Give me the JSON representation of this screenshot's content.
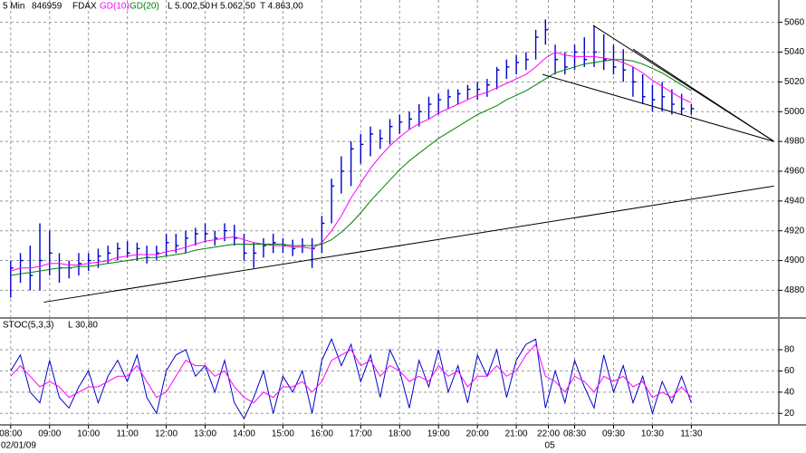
{
  "chart_data": [
    {
      "type": "ohlc",
      "title": "5 Min",
      "labels": [
        "846959",
        "FDAX",
        "L 5.002,50",
        "H 5.062,50",
        "T 4.863,00"
      ],
      "color": "#0000cc",
      "grid": true,
      "x": [
        0,
        1,
        2,
        3,
        4,
        5,
        6,
        7,
        8,
        9,
        10,
        11,
        12,
        13,
        14,
        15,
        16,
        17,
        18,
        19,
        20,
        21,
        22,
        23,
        24,
        25,
        26,
        27,
        28,
        29,
        30,
        31,
        32,
        33,
        34,
        35,
        36,
        37,
        38,
        39,
        40,
        41,
        42,
        43,
        44,
        45,
        46,
        47,
        48,
        49,
        50,
        51,
        52,
        53,
        54,
        55,
        56,
        57,
        58,
        59,
        60,
        61,
        62,
        63,
        64,
        65,
        66,
        67,
        68,
        69,
        70
      ],
      "high": [
        4900,
        4905,
        4910,
        4925,
        4920,
        4905,
        4900,
        4905,
        4905,
        4908,
        4910,
        4912,
        4913,
        4912,
        4910,
        4910,
        4918,
        4918,
        4920,
        4922,
        4925,
        4920,
        4925,
        4924,
        4918,
        4912,
        4915,
        4918,
        4915,
        4914,
        4915,
        4915,
        4930,
        4955,
        4970,
        4980,
        4985,
        4990,
        4988,
        4995,
        4998,
        5000,
        5005,
        5010,
        5012,
        5015,
        5015,
        5018,
        5020,
        5022,
        5030,
        5035,
        5038,
        5040,
        5055,
        5062,
        5045,
        5040,
        5045,
        5050,
        5058,
        5052,
        5045,
        5042,
        5030,
        5025,
        5018,
        5020,
        5015,
        5012,
        5005
      ],
      "low": [
        4875,
        4885,
        4880,
        4880,
        4890,
        4885,
        4888,
        4890,
        4893,
        4895,
        4898,
        4900,
        4902,
        4900,
        4898,
        4900,
        4903,
        4905,
        4905,
        4910,
        4912,
        4910,
        4913,
        4910,
        4900,
        4895,
        4902,
        4905,
        4905,
        4903,
        4905,
        4895,
        4905,
        4925,
        4945,
        4950,
        4965,
        4970,
        4975,
        4978,
        4985,
        4988,
        4990,
        4995,
        4998,
        5002,
        5005,
        5008,
        5008,
        5010,
        5015,
        5022,
        5025,
        5028,
        5035,
        5045,
        5025,
        5025,
        5028,
        5030,
        5030,
        5028,
        5025,
        5020,
        5010,
        5005,
        5000,
        5000,
        4998,
        4998,
        4998
      ],
      "close": [
        4895,
        4900,
        4890,
        4900,
        4905,
        4895,
        4895,
        4898,
        4900,
        4903,
        4905,
        4908,
        4905,
        4908,
        4902,
        4905,
        4912,
        4910,
        4915,
        4918,
        4918,
        4915,
        4920,
        4915,
        4905,
        4905,
        4910,
        4912,
        4910,
        4908,
        4910,
        4908,
        4925,
        4950,
        4960,
        4975,
        4978,
        4985,
        4982,
        4990,
        4993,
        4995,
        5000,
        5005,
        5008,
        5010,
        5012,
        5015,
        5015,
        5018,
        5028,
        5030,
        5033,
        5035,
        5050,
        5055,
        5035,
        5030,
        5040,
        5035,
        5040,
        5035,
        5030,
        5028,
        5020,
        5010,
        5008,
        5010,
        5005,
        5002,
        5002
      ],
      "series": [
        {
          "name": "GD(10)",
          "color": "#ff00ff",
          "values": [
            4893,
            4895,
            4895,
            4896,
            4898,
            4898,
            4897,
            4897,
            4898,
            4899,
            4900,
            4902,
            4903,
            4904,
            4904,
            4904,
            4906,
            4907,
            4909,
            4911,
            4913,
            4914,
            4915,
            4916,
            4914,
            4912,
            4911,
            4910,
            4910,
            4909,
            4909,
            4908,
            4912,
            4920,
            4930,
            4942,
            4952,
            4962,
            4970,
            4977,
            4983,
            4988,
            4992,
            4995,
            4999,
            5002,
            5005,
            5008,
            5011,
            5013,
            5016,
            5019,
            5022,
            5025,
            5030,
            5036,
            5040,
            5038,
            5037,
            5037,
            5037,
            5036,
            5035,
            5033,
            5030,
            5026,
            5021,
            5017,
            5013,
            5009,
            5006
          ]
        },
        {
          "name": "GD(20)",
          "color": "#008000",
          "values": [
            4890,
            4891,
            4892,
            4893,
            4894,
            4895,
            4895,
            4896,
            4896,
            4897,
            4898,
            4899,
            4900,
            4901,
            4902,
            4902,
            4903,
            4904,
            4905,
            4907,
            4908,
            4909,
            4910,
            4911,
            4911,
            4911,
            4911,
            4911,
            4911,
            4910,
            4910,
            4910,
            4911,
            4914,
            4919,
            4925,
            4932,
            4940,
            4947,
            4954,
            4961,
            4967,
            4972,
            4977,
            4982,
            4986,
            4990,
            4994,
            4998,
            5001,
            5004,
            5008,
            5011,
            5014,
            5018,
            5022,
            5026,
            5028,
            5030,
            5032,
            5033,
            5034,
            5035,
            5035,
            5034,
            5032,
            5029,
            5026,
            5022,
            5018,
            5014
          ]
        }
      ],
      "trendlines": [
        {
          "x": [
            3.4,
            78.5
          ],
          "y": [
            4872,
            4950
          ]
        },
        {
          "x": [
            54.7,
            78.5
          ],
          "y": [
            5025,
            4980
          ]
        },
        {
          "x": [
            59.9,
            78.5
          ],
          "y": [
            5058,
            4980
          ]
        },
        {
          "x": [
            64,
            78.5
          ],
          "y": [
            5042,
            4980
          ]
        }
      ],
      "xlim": [
        -1.1,
        79
      ],
      "ylim": [
        4862,
        5075
      ],
      "yticks": [
        4880,
        4900,
        4920,
        4940,
        4960,
        4980,
        5000,
        5020,
        5040,
        5060
      ],
      "xticks": [
        {
          "value": 0,
          "label": "08:00"
        },
        {
          "value": 4,
          "label": "09:00"
        },
        {
          "value": 8,
          "label": "10:00"
        },
        {
          "value": 12,
          "label": "11:00"
        },
        {
          "value": 16,
          "label": "12:00"
        },
        {
          "value": 20,
          "label": "13:00"
        },
        {
          "value": 24,
          "label": "14:00"
        },
        {
          "value": 28,
          "label": "15:00"
        },
        {
          "value": 32,
          "label": "16:00"
        },
        {
          "value": 36,
          "label": "17:00"
        },
        {
          "value": 40,
          "label": "18:00"
        },
        {
          "value": 44,
          "label": "19:00"
        },
        {
          "value": 48,
          "label": "20:00"
        },
        {
          "value": 52,
          "label": "21:00"
        },
        {
          "value": 55.3,
          "label": "22:00"
        },
        {
          "value": 58,
          "label": "08:30"
        },
        {
          "value": 62,
          "label": "09:30"
        },
        {
          "value": 66,
          "label": "10:30"
        },
        {
          "value": 70,
          "label": "11:30"
        }
      ],
      "date_labels": [
        {
          "value": 0,
          "label": "02/01/09"
        },
        {
          "value": 55.3,
          "label": "05"
        }
      ]
    },
    {
      "type": "line",
      "title": "STOC(5,3,3)",
      "labels": [
        "L 30,80"
      ],
      "grid": true,
      "x": [
        0,
        1,
        2,
        3,
        4,
        5,
        6,
        7,
        8,
        9,
        10,
        11,
        12,
        13,
        14,
        15,
        16,
        17,
        18,
        19,
        20,
        21,
        22,
        23,
        24,
        25,
        26,
        27,
        28,
        29,
        30,
        31,
        32,
        33,
        34,
        35,
        36,
        37,
        38,
        39,
        40,
        41,
        42,
        43,
        44,
        45,
        46,
        47,
        48,
        49,
        50,
        51,
        52,
        53,
        54,
        55,
        56,
        57,
        58,
        59,
        60,
        61,
        62,
        63,
        64,
        65,
        66,
        67,
        68,
        69,
        70
      ],
      "series": [
        {
          "color": "#0000cc",
          "values": [
            60,
            75,
            40,
            30,
            70,
            35,
            25,
            45,
            60,
            30,
            55,
            70,
            50,
            75,
            35,
            20,
            60,
            75,
            80,
            55,
            65,
            40,
            70,
            30,
            15,
            35,
            60,
            20,
            55,
            40,
            60,
            20,
            70,
            90,
            65,
            85,
            50,
            75,
            35,
            80,
            60,
            25,
            70,
            45,
            80,
            40,
            65,
            30,
            75,
            55,
            80,
            35,
            70,
            85,
            90,
            25,
            60,
            30,
            70,
            45,
            25,
            75,
            40,
            65,
            30,
            55,
            20,
            50,
            30,
            55,
            30
          ]
        },
        {
          "color": "#ff00ff",
          "values": [
            55,
            65,
            55,
            45,
            50,
            45,
            35,
            40,
            45,
            45,
            50,
            55,
            55,
            65,
            50,
            35,
            40,
            55,
            70,
            65,
            65,
            55,
            60,
            45,
            35,
            30,
            40,
            35,
            45,
            45,
            50,
            40,
            50,
            70,
            75,
            80,
            65,
            70,
            55,
            65,
            60,
            50,
            55,
            50,
            65,
            55,
            60,
            45,
            55,
            55,
            65,
            55,
            60,
            75,
            85,
            55,
            50,
            40,
            55,
            50,
            40,
            55,
            50,
            55,
            45,
            50,
            35,
            40,
            35,
            45,
            35
          ]
        }
      ],
      "xlim": [
        -1.1,
        79
      ],
      "ylim": [
        10,
        109
      ],
      "yticks": [
        20,
        40,
        60,
        80
      ]
    }
  ]
}
